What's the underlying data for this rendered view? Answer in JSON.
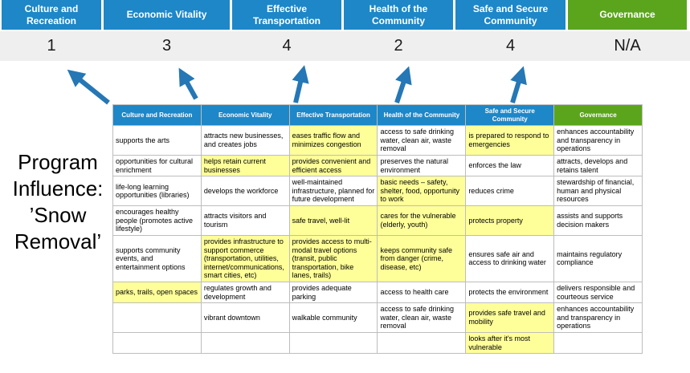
{
  "colors": {
    "blue": "#1d87c8",
    "green": "#5ba51c",
    "yellow": "#ffff99",
    "score_band": "#efefef",
    "arrow": "#2577b5"
  },
  "program_label": "Program Influence: ’Snow Removal’",
  "pillars": [
    {
      "label": "Culture and Recreation",
      "score": "1",
      "theme": "blue"
    },
    {
      "label": "Economic Vitality",
      "score": "3",
      "theme": "blue"
    },
    {
      "label": "Effective Transportation",
      "score": "4",
      "theme": "blue"
    },
    {
      "label": "Health of the Community",
      "score": "2",
      "theme": "blue"
    },
    {
      "label": "Safe and Secure Community",
      "score": "4",
      "theme": "blue"
    },
    {
      "label": "Governance",
      "score": "N/A",
      "theme": "green"
    }
  ],
  "matrix": {
    "headers": [
      {
        "label": "Culture and Recreation",
        "theme": "blue"
      },
      {
        "label": "Economic Vitality",
        "theme": "blue"
      },
      {
        "label": "Effective Transportation",
        "theme": "blue"
      },
      {
        "label": "Health of the Community",
        "theme": "blue"
      },
      {
        "label": "Safe and Secure Community",
        "theme": "blue"
      },
      {
        "label": "Governance",
        "theme": "green"
      }
    ],
    "rows": [
      [
        {
          "text": "supports the arts",
          "highlight": false
        },
        {
          "text": "attracts new businesses, and creates jobs",
          "highlight": false
        },
        {
          "text": "eases traffic flow and minimizes congestion",
          "highlight": true
        },
        {
          "text": "access to safe drinking water, clean air, waste removal",
          "highlight": false
        },
        {
          "text": "is prepared to respond to emergencies",
          "highlight": true
        },
        {
          "text": "enhances accountability and transparency in operations",
          "highlight": false
        }
      ],
      [
        {
          "text": "opportunities for cultural enrichment",
          "highlight": false
        },
        {
          "text": "helps retain current businesses",
          "highlight": true
        },
        {
          "text": "provides convenient and efficient access",
          "highlight": true
        },
        {
          "text": "preserves the natural environment",
          "highlight": false
        },
        {
          "text": "enforces the law",
          "highlight": false
        },
        {
          "text": "attracts, develops and retains talent",
          "highlight": false
        }
      ],
      [
        {
          "text": "life-long learning opportunities (libraries)",
          "highlight": false
        },
        {
          "text": "develops the workforce",
          "highlight": false
        },
        {
          "text": "well-maintained infrastructure, planned for future development",
          "highlight": false
        },
        {
          "text": "basic needs – safety, shelter, food, opportunity to work",
          "highlight": true
        },
        {
          "text": "reduces crime",
          "highlight": false
        },
        {
          "text": "stewardship of financial, human and physical resources",
          "highlight": false
        }
      ],
      [
        {
          "text": "encourages healthy people (promotes active lifestyle)",
          "highlight": false
        },
        {
          "text": "attracts visitors and tourism",
          "highlight": false
        },
        {
          "text": "safe travel, well-lit",
          "highlight": true
        },
        {
          "text": "cares for the vulnerable (elderly, youth)",
          "highlight": true
        },
        {
          "text": "protects property",
          "highlight": true
        },
        {
          "text": "assists and supports decision makers",
          "highlight": false
        }
      ],
      [
        {
          "text": "supports community events, and entertainment options",
          "highlight": false
        },
        {
          "text": "provides infrastructure to support commerce (transportation, utilities, internet/communications, smart cities, etc)",
          "highlight": true
        },
        {
          "text": "provides access to multi-modal travel options (transit, public transportation, bike lanes, trails)",
          "highlight": true
        },
        {
          "text": "keeps community safe from danger (crime, disease, etc)",
          "highlight": true
        },
        {
          "text": "ensures safe air and access to drinking water",
          "highlight": false
        },
        {
          "text": "maintains regulatory compliance",
          "highlight": false
        }
      ],
      [
        {
          "text": "parks, trails, open spaces",
          "highlight": true
        },
        {
          "text": "regulates growth and development",
          "highlight": false
        },
        {
          "text": "provides adequate parking",
          "highlight": false
        },
        {
          "text": "access to health care",
          "highlight": false
        },
        {
          "text": "protects the environment",
          "highlight": false
        },
        {
          "text": "delivers responsible and courteous service",
          "highlight": false
        }
      ],
      [
        {
          "text": "",
          "highlight": false
        },
        {
          "text": "vibrant downtown",
          "highlight": false
        },
        {
          "text": "walkable community",
          "highlight": false
        },
        {
          "text": "access to safe drinking water, clean air, waste removal",
          "highlight": false
        },
        {
          "text": "provides safe travel and mobility",
          "highlight": true
        },
        {
          "text": "enhances accountability and transparency in operations",
          "highlight": false
        }
      ],
      [
        {
          "text": "",
          "highlight": false
        },
        {
          "text": "",
          "highlight": false
        },
        {
          "text": "",
          "highlight": false
        },
        {
          "text": "",
          "highlight": false
        },
        {
          "text": "looks after it's most vulnerable",
          "highlight": true
        },
        {
          "text": "",
          "highlight": false
        }
      ]
    ]
  }
}
